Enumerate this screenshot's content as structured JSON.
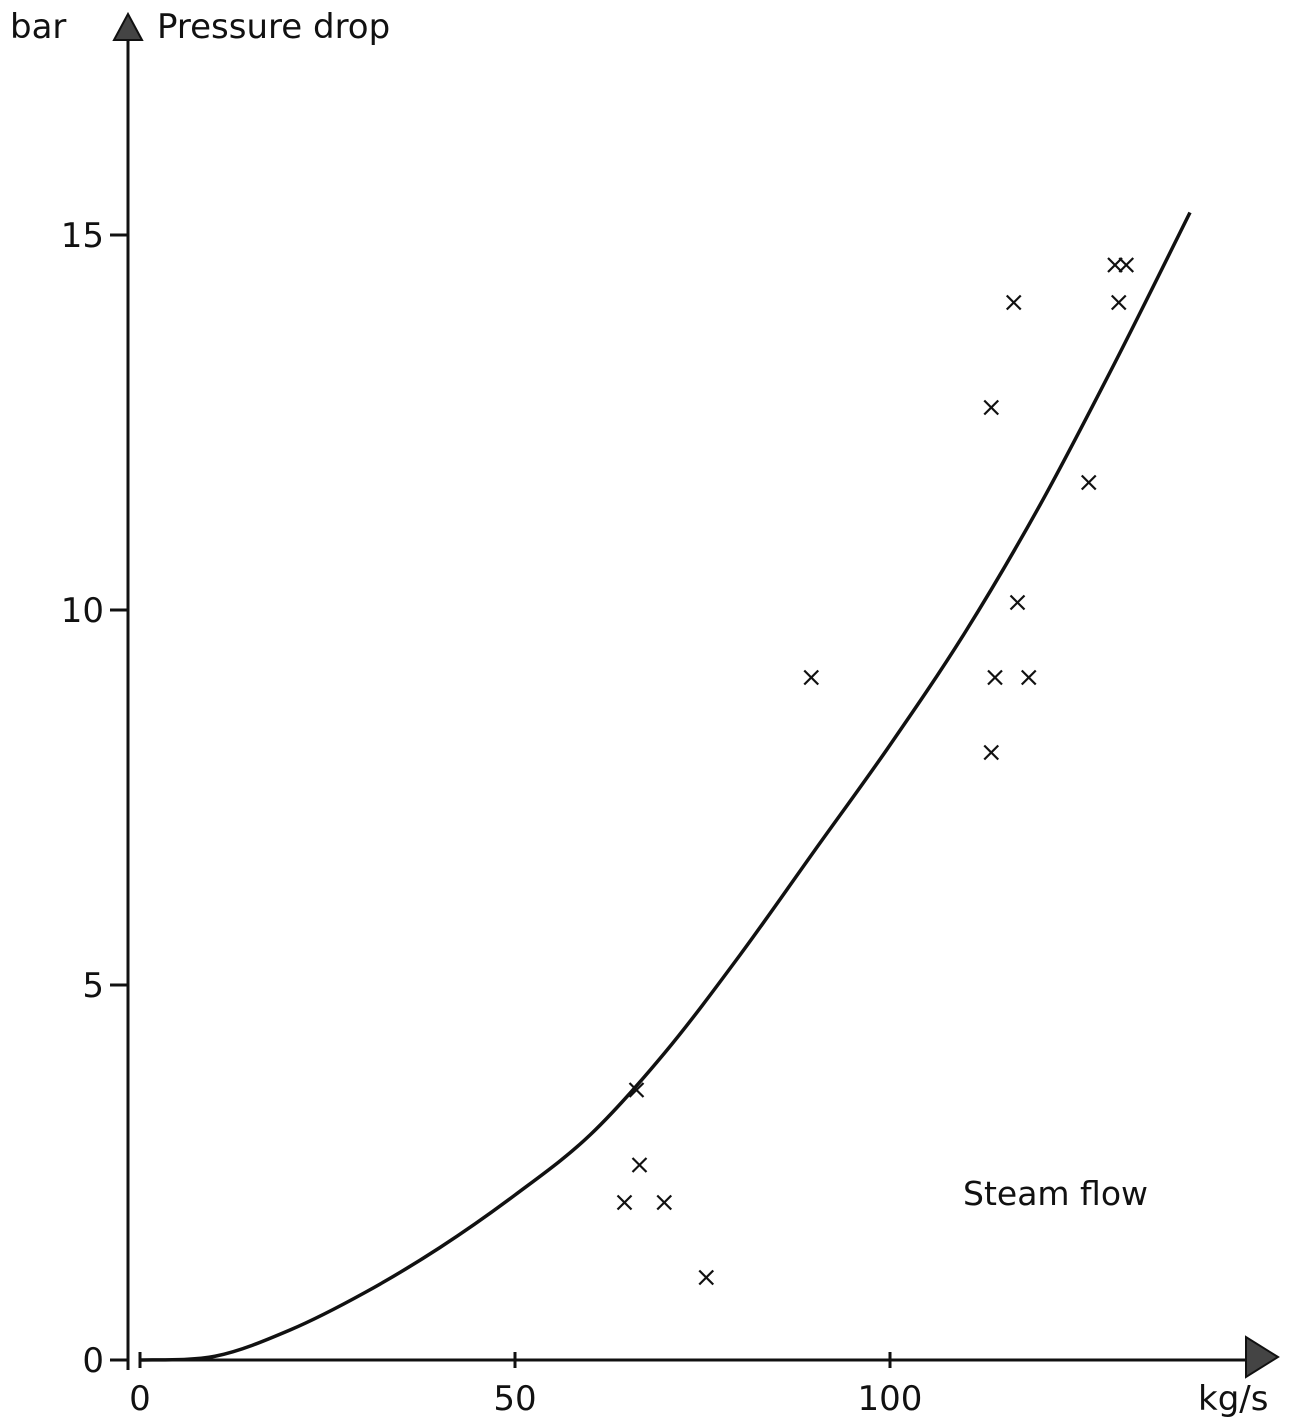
{
  "chart_data": {
    "type": "scatter",
    "title": "",
    "ylabel_unit": "bar",
    "ylabel": "Pressure drop",
    "xlabel_unit": "kg/s",
    "annotation": "Steam flow",
    "xlim": [
      0,
      150
    ],
    "ylim": [
      0,
      17.5
    ],
    "x_ticks": [
      0,
      50,
      100
    ],
    "y_ticks": [
      0,
      5,
      10,
      15
    ],
    "grid": false,
    "legend": "none",
    "series": [
      {
        "type": "scatter",
        "marker": "x",
        "points": [
          [
            64.6,
            2.1
          ],
          [
            66.2,
            3.6
          ],
          [
            66.6,
            2.6
          ],
          [
            69.9,
            2.1
          ],
          [
            75.5,
            1.1
          ],
          [
            89.5,
            9.1
          ],
          [
            113.5,
            8.1
          ],
          [
            113.5,
            12.7
          ],
          [
            114.0,
            9.1
          ],
          [
            116.5,
            14.1
          ],
          [
            117.0,
            10.1
          ],
          [
            118.5,
            9.1
          ],
          [
            126.5,
            11.7
          ],
          [
            130.5,
            14.1
          ],
          [
            130.0,
            14.6
          ],
          [
            131.5,
            14.6
          ]
        ]
      },
      {
        "type": "line",
        "points": [
          [
            0,
            0
          ],
          [
            10,
            0.05
          ],
          [
            20,
            0.4
          ],
          [
            30,
            0.9
          ],
          [
            40,
            1.5
          ],
          [
            50,
            2.2
          ],
          [
            60,
            3.0
          ],
          [
            70,
            4.1
          ],
          [
            80,
            5.4
          ],
          [
            90,
            6.8
          ],
          [
            100,
            8.2
          ],
          [
            110,
            9.7
          ],
          [
            120,
            11.4
          ],
          [
            130,
            13.3
          ],
          [
            140,
            15.3
          ]
        ]
      }
    ],
    "colors": {
      "ink": "#111111"
    }
  }
}
